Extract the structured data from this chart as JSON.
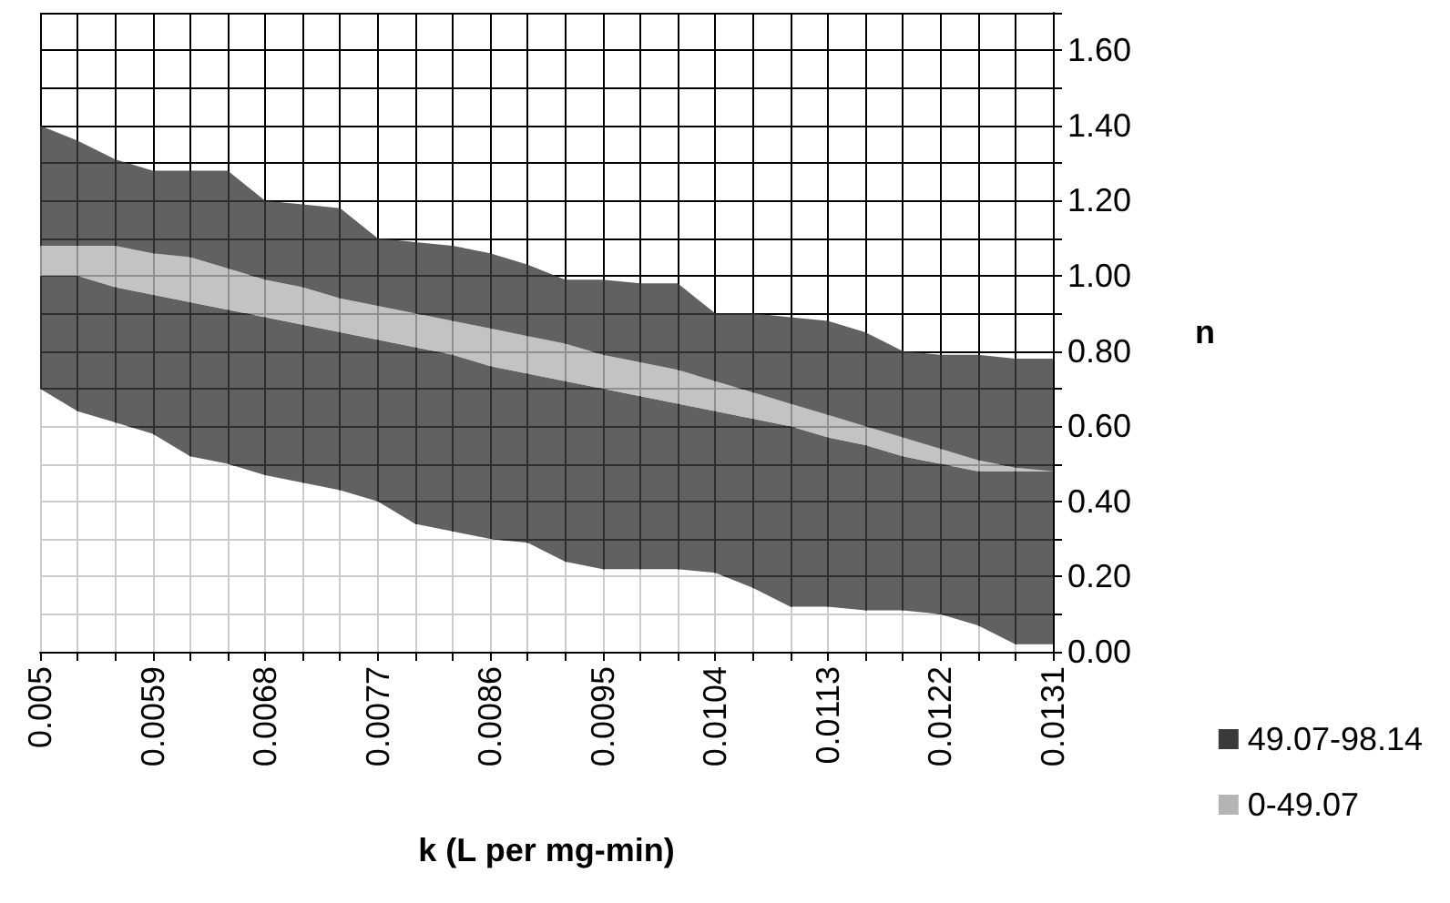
{
  "chart_data": {
    "type": "area",
    "stacked": true,
    "xlabel": "k (L per mg-min)",
    "ylabel": "n",
    "categories": [
      "0.005",
      null,
      null,
      "0.0059",
      null,
      null,
      "0.0068",
      null,
      null,
      "0.0077",
      null,
      null,
      "0.0086",
      null,
      null,
      "0.0095",
      null,
      null,
      "0.0104",
      null,
      null,
      "0.0113",
      null,
      null,
      "0.0122",
      null,
      null,
      "0.0131"
    ],
    "series": [
      {
        "color": "#ffffff",
        "values": [
          0.7,
          0.64,
          0.61,
          0.58,
          0.52,
          0.5,
          0.47,
          0.45,
          0.43,
          0.4,
          0.34,
          0.32,
          0.3,
          0.29,
          0.24,
          0.22,
          0.22,
          0.22,
          0.21,
          0.17,
          0.12,
          0.12,
          0.11,
          0.11,
          0.1,
          0.07,
          0.02,
          0.02
        ]
      },
      {
        "color": "#3a3a3a",
        "values": [
          0.3,
          0.36,
          0.36,
          0.37,
          0.41,
          0.41,
          0.42,
          0.42,
          0.42,
          0.43,
          0.47,
          0.47,
          0.46,
          0.45,
          0.48,
          0.48,
          0.46,
          0.44,
          0.43,
          0.45,
          0.48,
          0.45,
          0.44,
          0.41,
          0.4,
          0.41,
          0.46,
          0.46
        ]
      },
      {
        "name": "0-49.07",
        "color": "#b4b4b4",
        "values": [
          0.08,
          0.08,
          0.11,
          0.11,
          0.12,
          0.11,
          0.1,
          0.1,
          0.09,
          0.09,
          0.09,
          0.09,
          0.1,
          0.1,
          0.1,
          0.09,
          0.09,
          0.09,
          0.08,
          0.07,
          0.06,
          0.06,
          0.05,
          0.05,
          0.04,
          0.03,
          0.01,
          0.0
        ]
      },
      {
        "name": "49.07-98.14",
        "color": "#3a3a3a",
        "values": [
          0.32,
          0.28,
          0.23,
          0.22,
          0.23,
          0.26,
          0.21,
          0.22,
          0.24,
          0.18,
          0.19,
          0.2,
          0.2,
          0.19,
          0.17,
          0.2,
          0.21,
          0.23,
          0.18,
          0.21,
          0.23,
          0.25,
          0.25,
          0.23,
          0.25,
          0.28,
          0.29,
          0.3
        ]
      }
    ],
    "ylim": [
      0,
      1.7
    ],
    "yticks": [
      {
        "value": 0,
        "label": "0.00"
      },
      {
        "value": 0.1,
        "label": null
      },
      {
        "value": 0.2,
        "label": "0.20"
      },
      {
        "value": 0.3,
        "label": null
      },
      {
        "value": 0.4,
        "label": "0.40"
      },
      {
        "value": 0.5,
        "label": null
      },
      {
        "value": 0.6,
        "label": "0.60"
      },
      {
        "value": 0.7,
        "label": null
      },
      {
        "value": 0.8,
        "label": "0.80"
      },
      {
        "value": 0.9,
        "label": null
      },
      {
        "value": 1,
        "label": "1.00"
      },
      {
        "value": 1.1,
        "label": null
      },
      {
        "value": 1.2,
        "label": "1.20"
      },
      {
        "value": 1.3,
        "label": null
      },
      {
        "value": 1.4,
        "label": "1.40"
      },
      {
        "value": 1.5,
        "label": null
      },
      {
        "value": 1.6,
        "label": "1.60"
      },
      {
        "value": 1.7,
        "label": null
      }
    ],
    "grid": true,
    "legend": "bottom right"
  }
}
